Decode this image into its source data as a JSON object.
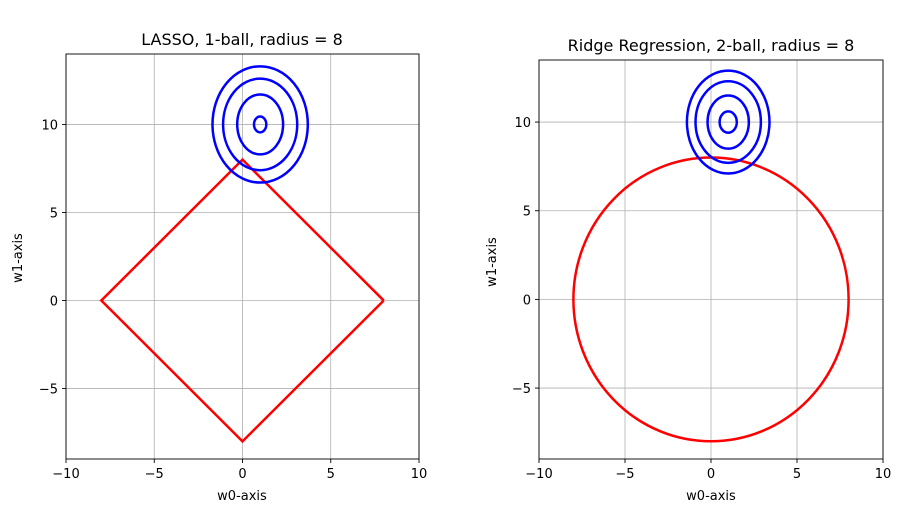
{
  "chart_data": [
    {
      "type": "line",
      "title": "LASSO, 1-ball, radius = 8",
      "xlabel": "w0-axis",
      "ylabel": "w1-axis",
      "xlim": [
        -10,
        10
      ],
      "ylim": [
        -9,
        14
      ],
      "xticks": [
        -10,
        -5,
        0,
        5,
        10
      ],
      "yticks": [
        -5,
        0,
        5,
        10
      ],
      "xtick_labels": [
        "−10",
        "−5",
        "0",
        "5",
        "10"
      ],
      "ytick_labels": [
        "−5",
        "0",
        "5",
        "10"
      ],
      "grid": true,
      "constraint": {
        "shape": "l1-ball",
        "radius": 8,
        "color": "#ff0000",
        "points": [
          [
            8,
            0
          ],
          [
            0,
            8
          ],
          [
            -8,
            0
          ],
          [
            0,
            -8
          ],
          [
            8,
            0
          ]
        ]
      },
      "contours": {
        "color": "#0000ff",
        "center": [
          1,
          10
        ],
        "ellipses": [
          [
            0.35,
            0.45
          ],
          [
            1.3,
            1.7
          ],
          [
            2.1,
            2.6
          ],
          [
            2.7,
            3.3
          ]
        ]
      }
    },
    {
      "type": "line",
      "title": "Ridge Regression, 2-ball, radius = 8",
      "xlabel": "w0-axis",
      "ylabel": "w1-axis",
      "xlim": [
        -10,
        10
      ],
      "ylim": [
        -9,
        13.5
      ],
      "xticks": [
        -10,
        -5,
        0,
        5,
        10
      ],
      "yticks": [
        -5,
        0,
        5,
        10
      ],
      "xtick_labels": [
        "−10",
        "−5",
        "0",
        "5",
        "10"
      ],
      "ytick_labels": [
        "−5",
        "0",
        "5",
        "10"
      ],
      "grid": true,
      "constraint": {
        "shape": "l2-ball",
        "radius": 8,
        "color": "#ff0000",
        "center": [
          0,
          0
        ]
      },
      "contours": {
        "color": "#0000ff",
        "center": [
          1,
          10
        ],
        "ellipses": [
          [
            0.5,
            0.6
          ],
          [
            1.2,
            1.5
          ],
          [
            1.9,
            2.3
          ],
          [
            2.4,
            2.9
          ]
        ]
      }
    }
  ]
}
